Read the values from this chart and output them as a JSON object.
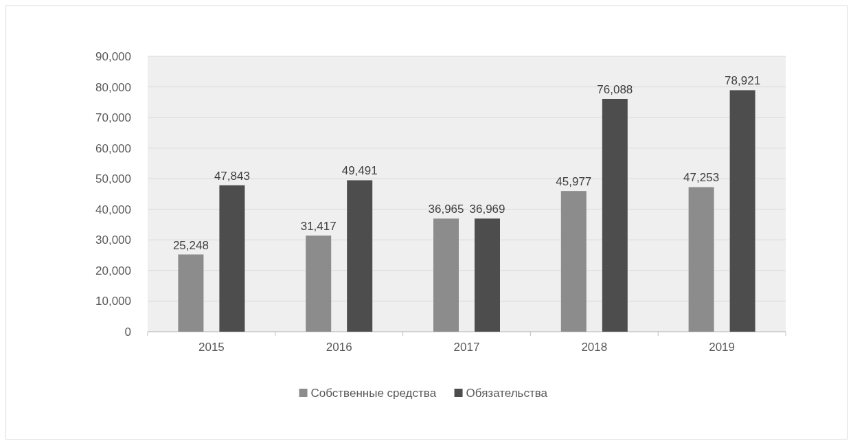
{
  "chart_data": {
    "type": "bar",
    "categories": [
      "2015",
      "2016",
      "2017",
      "2018",
      "2019"
    ],
    "series": [
      {
        "name": "Собственные средства",
        "color": "#8c8c8c",
        "values": [
          25248,
          31417,
          36965,
          45977,
          47253
        ],
        "value_labels": [
          "25,248",
          "31,417",
          "36,965",
          "45,977",
          "47,253"
        ]
      },
      {
        "name": "Обязательства",
        "color": "#4d4d4d",
        "values": [
          47843,
          49491,
          36969,
          76088,
          78921
        ],
        "value_labels": [
          "47,843",
          "49,491",
          "36,969",
          "76,088",
          "78,921"
        ]
      }
    ],
    "ylim": [
      0,
      90000
    ],
    "yticks": [
      {
        "value": 0,
        "label": "0"
      },
      {
        "value": 10000,
        "label": "10,000"
      },
      {
        "value": 20000,
        "label": "20,000"
      },
      {
        "value": 30000,
        "label": "30,000"
      },
      {
        "value": 40000,
        "label": "40,000"
      },
      {
        "value": 50000,
        "label": "50,000"
      },
      {
        "value": 60000,
        "label": "60,000"
      },
      {
        "value": 70000,
        "label": "70,000"
      },
      {
        "value": 80000,
        "label": "80,000"
      },
      {
        "value": 90000,
        "label": "90,000"
      }
    ],
    "grid": "y",
    "legend": "bottom"
  }
}
